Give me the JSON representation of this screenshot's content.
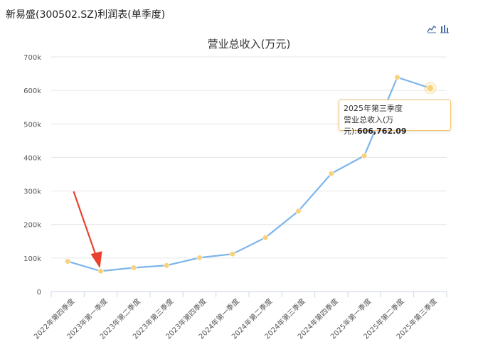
{
  "page": {
    "title": "新易盛(300502.SZ)利润表(单季度)"
  },
  "toolbar": {
    "icons": [
      "line-chart-icon",
      "bar-chart-icon"
    ]
  },
  "tooltip": {
    "period": "2025年第三季度",
    "label": "营业总收入(万元):",
    "value": "606,762.09"
  },
  "colors": {
    "line": "#7cb5ec",
    "marker": "#f7d27a",
    "grid": "#e6e6e6",
    "arrow": "#e8412f"
  },
  "chart_data": {
    "type": "line",
    "title": "营业总收入(万元)",
    "categories": [
      "2022年第四季度",
      "2023年第一季度",
      "2023年第二季度",
      "2023年第三季度",
      "2023年第四季度",
      "2024年第一季度",
      "2024年第二季度",
      "2024年第三季度",
      "2024年第四季度",
      "2025年第一季度",
      "2025年第二季度",
      "2025年第三季度"
    ],
    "values": [
      90000,
      61000,
      71000,
      78000,
      101000,
      112000,
      161000,
      240000,
      352000,
      405000,
      639000,
      606762.09
    ],
    "yticks": [
      "0",
      "100k",
      "200k",
      "300k",
      "400k",
      "500k",
      "600k",
      "700k"
    ],
    "ylim": [
      0,
      700000
    ],
    "grid": true,
    "highlight_index": 11
  }
}
